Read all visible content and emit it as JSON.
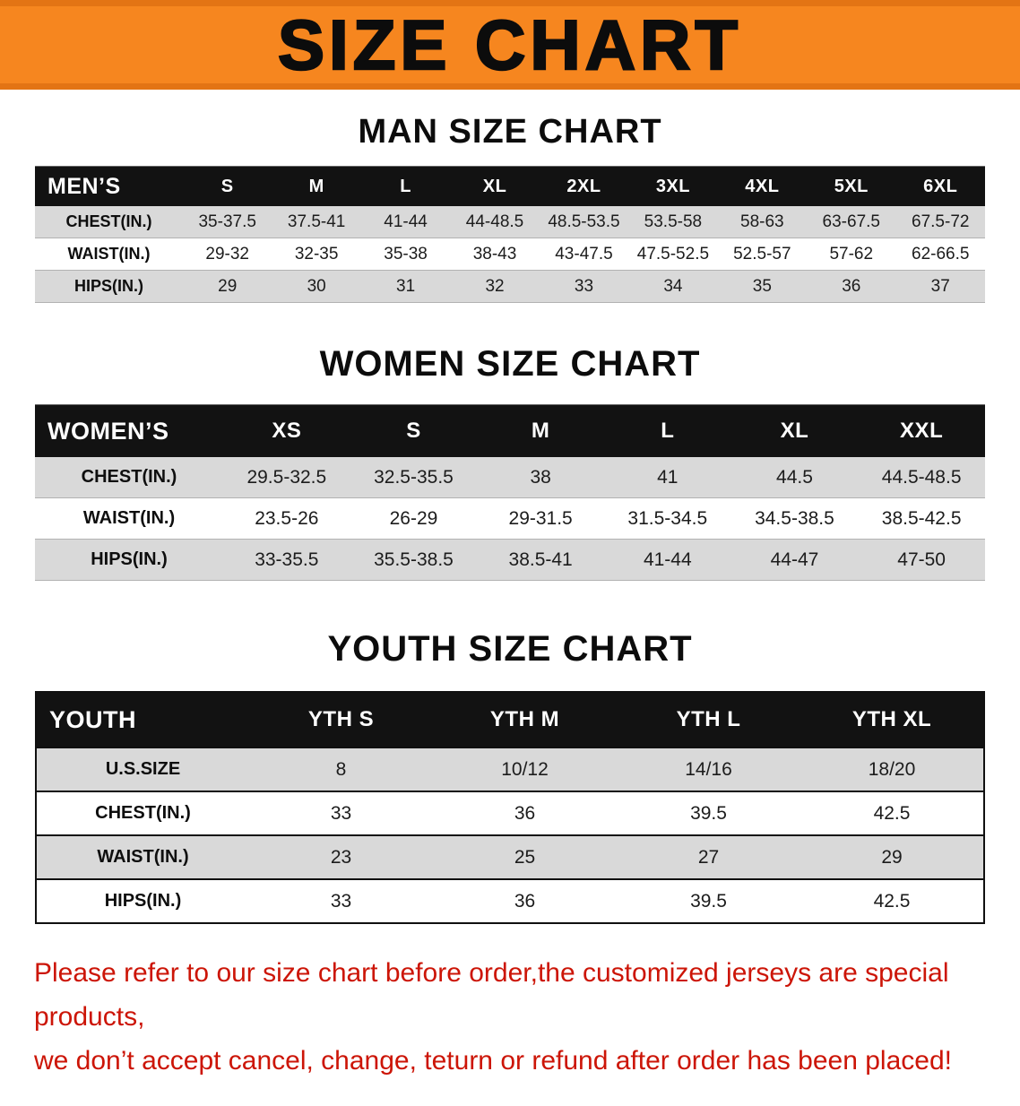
{
  "banner": {
    "title": "SIZE CHART",
    "bg_color": "#f6861f"
  },
  "colors": {
    "table_header_bg": "#121212",
    "row_alt_gray": "#d9d9d9",
    "notice_red": "#cc1507"
  },
  "men": {
    "heading": "MAN SIZE CHART",
    "label": "MEN’S",
    "sizes": [
      "S",
      "M",
      "L",
      "XL",
      "2XL",
      "3XL",
      "4XL",
      "5XL",
      "6XL"
    ],
    "rows": [
      {
        "label": "CHEST(IN.)",
        "values": [
          "35-37.5",
          "37.5-41",
          "41-44",
          "44-48.5",
          "48.5-53.5",
          "53.5-58",
          "58-63",
          "63-67.5",
          "67.5-72"
        ]
      },
      {
        "label": "WAIST(IN.)",
        "values": [
          "29-32",
          "32-35",
          "35-38",
          "38-43",
          "43-47.5",
          "47.5-52.5",
          "52.5-57",
          "57-62",
          "62-66.5"
        ]
      },
      {
        "label": "HIPS(IN.)",
        "values": [
          "29",
          "30",
          "31",
          "32",
          "33",
          "34",
          "35",
          "36",
          "37"
        ]
      }
    ]
  },
  "women": {
    "heading": "WOMEN SIZE CHART",
    "label": "WOMEN’S",
    "sizes": [
      "XS",
      "S",
      "M",
      "L",
      "XL",
      "XXL"
    ],
    "rows": [
      {
        "label": "CHEST(IN.)",
        "values": [
          "29.5-32.5",
          "32.5-35.5",
          "38",
          "41",
          "44.5",
          "44.5-48.5"
        ]
      },
      {
        "label": "WAIST(IN.)",
        "values": [
          "23.5-26",
          "26-29",
          "29-31.5",
          "31.5-34.5",
          "34.5-38.5",
          "38.5-42.5"
        ]
      },
      {
        "label": "HIPS(IN.)",
        "values": [
          "33-35.5",
          "35.5-38.5",
          "38.5-41",
          "41-44",
          "44-47",
          "47-50"
        ]
      }
    ]
  },
  "youth": {
    "heading": "YOUTH SIZE CHART",
    "label": "YOUTH",
    "sizes": [
      "YTH S",
      "YTH M",
      "YTH L",
      "YTH XL"
    ],
    "rows": [
      {
        "label": "U.S.SIZE",
        "values": [
          "8",
          "10/12",
          "14/16",
          "18/20"
        ]
      },
      {
        "label": "CHEST(IN.)",
        "values": [
          "33",
          "36",
          "39.5",
          "42.5"
        ]
      },
      {
        "label": "WAIST(IN.)",
        "values": [
          "23",
          "25",
          "27",
          "29"
        ]
      },
      {
        "label": "HIPS(IN.)",
        "values": [
          "33",
          "36",
          "39.5",
          "42.5"
        ]
      }
    ]
  },
  "footer": {
    "line1": "Please refer to our size chart before order,the customized jerseys are special products,",
    "line2": "we don’t accept cancel, change, teturn or refund after order has been placed!"
  }
}
